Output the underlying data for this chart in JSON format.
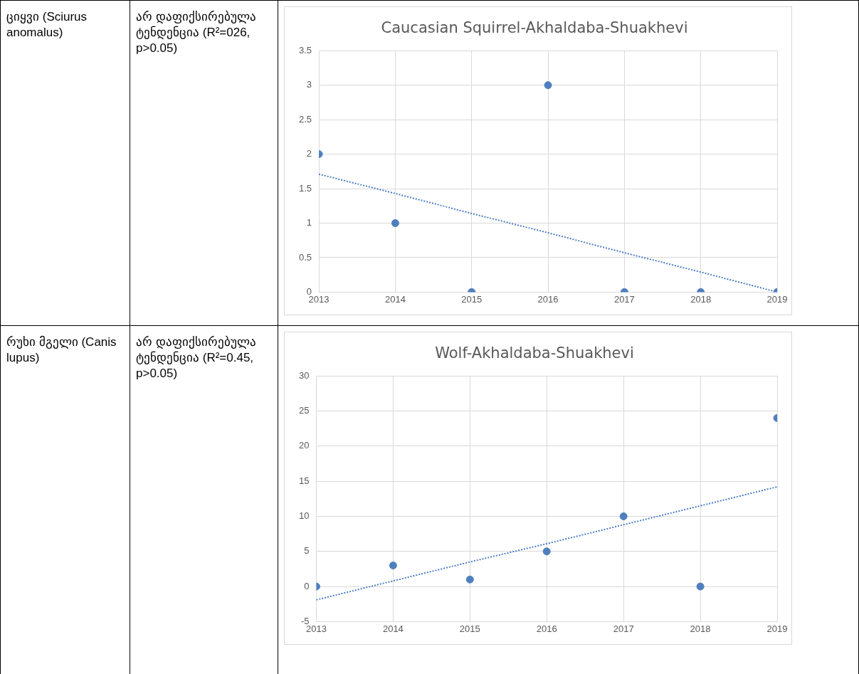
{
  "chart_data": [
    {
      "type": "scatter",
      "title": "Caucasian Squirrel-Akhaldaba-Shuakhevi",
      "x": [
        2013,
        2014,
        2015,
        2016,
        2017,
        2018,
        2019
      ],
      "xlim": [
        2013,
        2019
      ],
      "xticks": [
        2013,
        2014,
        2015,
        2016,
        2017,
        2018,
        2019
      ],
      "ylim": [
        0,
        3.5
      ],
      "yticks": [
        0,
        0.5,
        1,
        1.5,
        2,
        2.5,
        3,
        3.5
      ],
      "grid": true,
      "legend": false,
      "series": [
        {
          "color": "#4f7fbe",
          "marker": "circle",
          "values": [
            2,
            1,
            0,
            3,
            0,
            0,
            0
          ]
        },
        {
          "type": "line",
          "color": "#4a7ec4",
          "marker": "none",
          "line_style": "dotted",
          "values": [
            1.71,
            1.43,
            1.14,
            0.86,
            0.57,
            0.29,
            0
          ]
        }
      ],
      "annotations": [
        "ციყვი (Sciurus anomalus)",
        "არ დაფიქსირებულა ტენდენცია (R²=026, p>0.05)"
      ]
    },
    {
      "type": "scatter",
      "title": "Wolf-Akhaldaba-Shuakhevi",
      "x": [
        2013,
        2014,
        2015,
        2016,
        2017,
        2018,
        2019
      ],
      "xlim": [
        2013,
        2019
      ],
      "xticks": [
        2013,
        2014,
        2015,
        2016,
        2017,
        2018,
        2019
      ],
      "ylim": [
        -5,
        30
      ],
      "yticks": [
        -5,
        0,
        5,
        10,
        15,
        20,
        25,
        30
      ],
      "grid": true,
      "legend": false,
      "series": [
        {
          "color": "#4f7fbe",
          "marker": "circle",
          "values": [
            0,
            3,
            1,
            5,
            10,
            0,
            24
          ]
        },
        {
          "type": "line",
          "color": "#4a7ec4",
          "marker": "none",
          "line_style": "dotted",
          "values": [
            -1.9,
            0.8,
            3.5,
            6.1,
            8.8,
            11.5,
            14.2
          ]
        }
      ],
      "annotations": [
        "რუხი მგელი (Canis lupus)",
        "არ დაფიქსირებულა ტენდენცია (R²=0.45, p>0.05)"
      ]
    }
  ]
}
